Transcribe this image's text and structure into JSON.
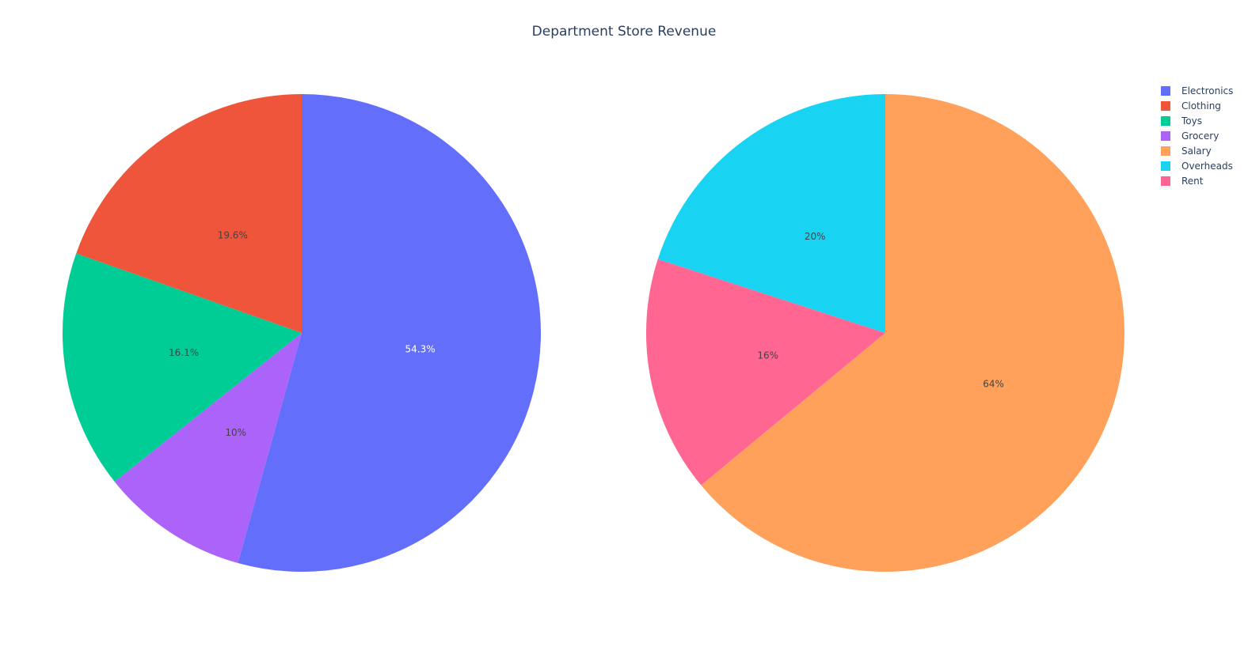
{
  "chart_data": [
    {
      "type": "pie",
      "title": "Department Store Revenue",
      "labels": [
        "Electronics",
        "Clothing",
        "Toys",
        "Grocery"
      ],
      "values": [
        54.3,
        19.6,
        16.1,
        10
      ],
      "percent_labels": [
        "54.3%",
        "19.6%",
        "16.1%",
        "10%"
      ],
      "colors": [
        "#636efa",
        "#ef553b",
        "#00cc96",
        "#ab63fa"
      ],
      "label_colors": [
        "#ffffff",
        "#444444",
        "#444444",
        "#444444"
      ],
      "order": [
        "Electronics",
        "Grocery",
        "Toys",
        "Clothing"
      ]
    },
    {
      "type": "pie",
      "labels": [
        "Salary",
        "Overheads",
        "Rent"
      ],
      "values": [
        64,
        20,
        16
      ],
      "percent_labels": [
        "64%",
        "20%",
        "16%"
      ],
      "colors": [
        "#ffa15a",
        "#19d3f3",
        "#ff6692"
      ],
      "label_colors": [
        "#444444",
        "#444444",
        "#444444"
      ],
      "order": [
        "Salary",
        "Rent",
        "Overheads"
      ]
    }
  ],
  "legend": {
    "position": "top-right",
    "items": [
      {
        "label": "Electronics",
        "color": "#636efa"
      },
      {
        "label": "Clothing",
        "color": "#ef553b"
      },
      {
        "label": "Toys",
        "color": "#00cc96"
      },
      {
        "label": "Grocery",
        "color": "#ab63fa"
      },
      {
        "label": "Salary",
        "color": "#ffa15a"
      },
      {
        "label": "Overheads",
        "color": "#19d3f3"
      },
      {
        "label": "Rent",
        "color": "#ff6692"
      }
    ]
  }
}
